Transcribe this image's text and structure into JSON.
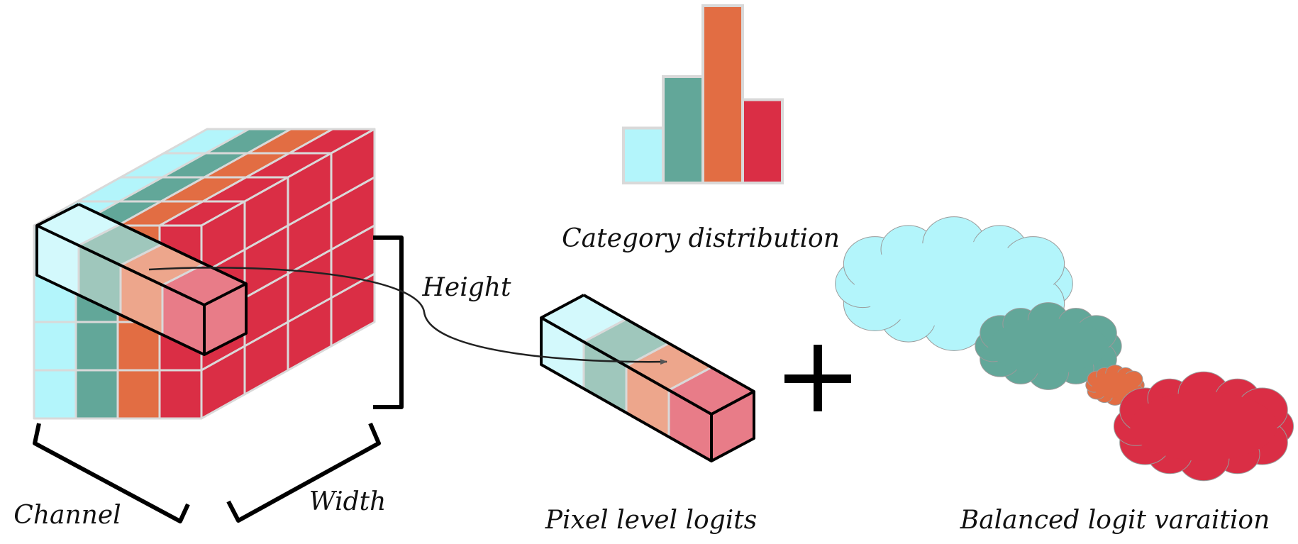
{
  "labels": {
    "category": "Category distribution",
    "height": "Height",
    "channel": "Channel",
    "width": "Width",
    "pixel": "Pixel level logits",
    "balanced": "Balanced logit varaition",
    "plus": "+"
  },
  "colors": {
    "cyan": "#B3F5FB",
    "teal": "#62A799",
    "orange": "#E26D43",
    "red": "#DA2E45",
    "cube_front": [
      "#B3F5FB",
      "#62A799",
      "#E26D43",
      "#DA2E45"
    ],
    "cube_side": "#DA2E45",
    "highlight": [
      "#D3F9FC",
      "#9FC7BC",
      "#EDA68C",
      "#E87C88"
    ]
  },
  "category_distribution": {
    "categories": [
      "cyan",
      "teal",
      "orange",
      "red"
    ],
    "values": [
      0.31,
      0.6,
      1.0,
      0.47
    ]
  },
  "cloud_sizes": {
    "categories": [
      "cyan",
      "teal",
      "orange",
      "red"
    ],
    "values": [
      0.36,
      0.22,
      0.04,
      0.31
    ]
  }
}
